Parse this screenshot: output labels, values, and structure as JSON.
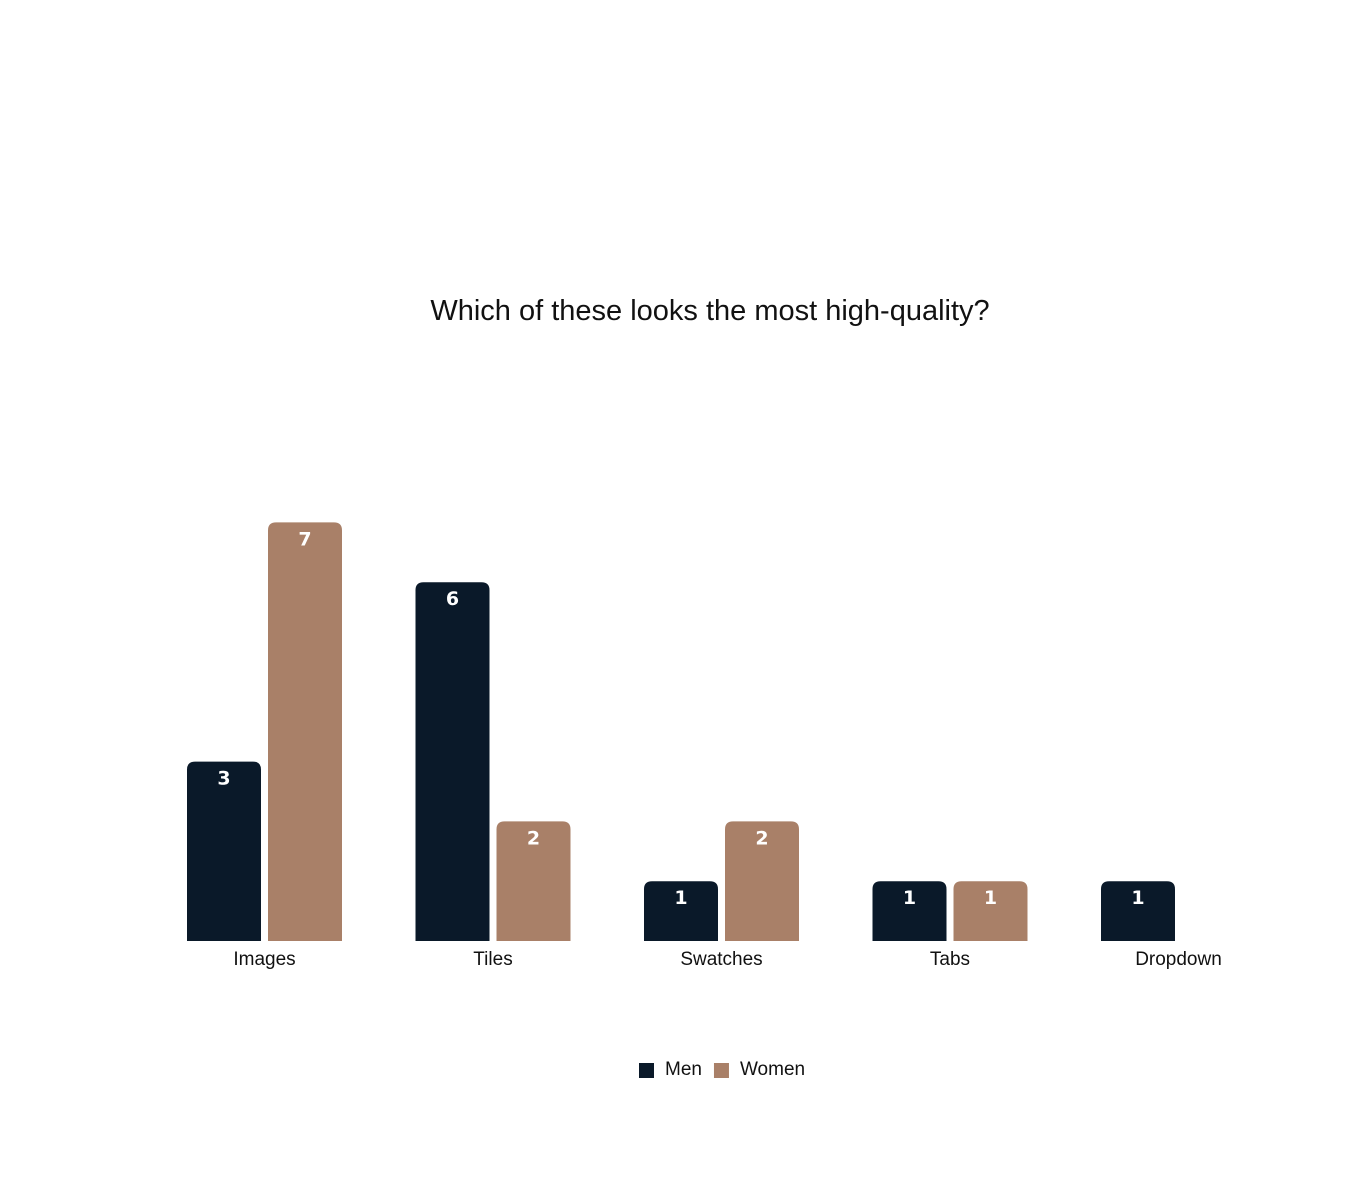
{
  "chart_data": {
    "type": "bar",
    "title": "Which of these looks the most high-quality?",
    "xlabel": "",
    "ylabel": "",
    "categories": [
      "Images",
      "Tiles",
      "Swatches",
      "Tabs",
      "Dropdown"
    ],
    "series": [
      {
        "name": "Men",
        "values": [
          3,
          6,
          1,
          1,
          1
        ],
        "color": "#0a1929"
      },
      {
        "name": "Women",
        "values": [
          7,
          2,
          2,
          1,
          null
        ],
        "color": "#a98068"
      }
    ],
    "ylim": [
      0,
      7
    ],
    "grid": false,
    "legend_position": "bottom-center",
    "data_labels": true
  }
}
